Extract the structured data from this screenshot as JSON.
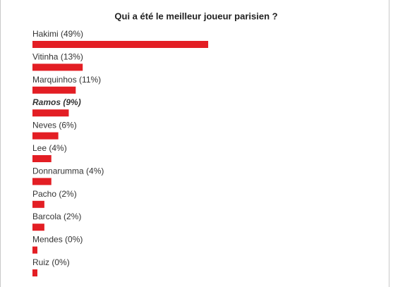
{
  "chart_data": {
    "type": "bar",
    "orientation": "horizontal",
    "title": "Qui a été le meilleur joueur parisien ?",
    "categories": [
      "Hakimi",
      "Vitinha",
      "Marquinhos",
      "Ramos",
      "Neves",
      "Lee",
      "Donnarumma",
      "Pacho",
      "Barcola",
      "Mendes",
      "Ruiz"
    ],
    "values": [
      49,
      13,
      11,
      9,
      6,
      4,
      4,
      2,
      2,
      0,
      0
    ],
    "value_labels": [
      "(49%)",
      "(13%)",
      "(11%)",
      "(9%)",
      "(6%)",
      "(4%)",
      "(4%)",
      "(2%)",
      "(2%)",
      "(0%)",
      "(0%)"
    ],
    "xlim": [
      0,
      100
    ],
    "color": "#e31e24",
    "highlight_index": 3
  }
}
